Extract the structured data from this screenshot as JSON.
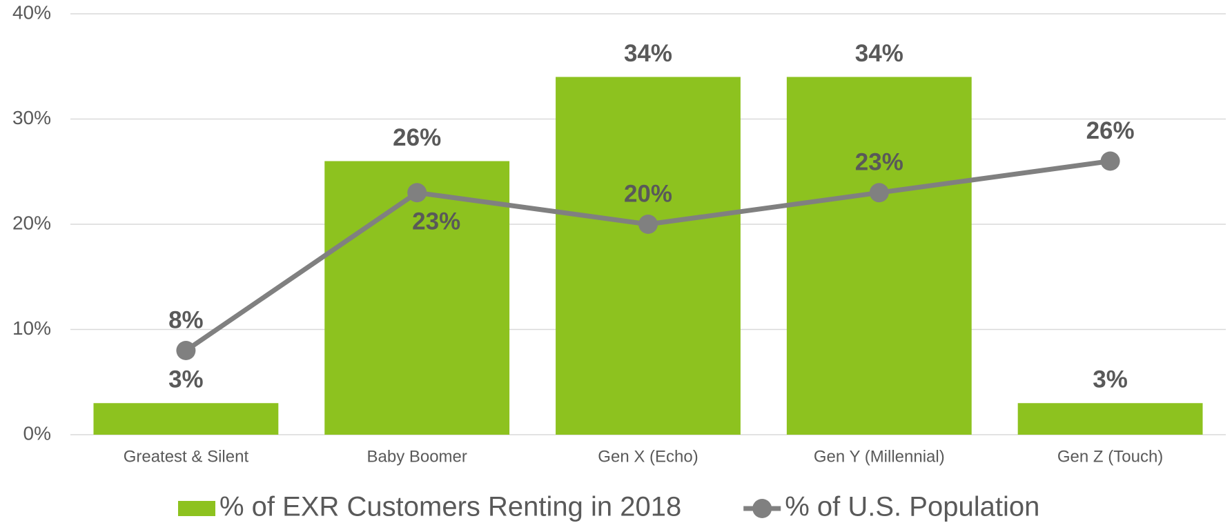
{
  "chart_data": {
    "type": "combo",
    "categories": [
      "Greatest & Silent",
      "Baby Boomer",
      "Gen X (Echo)",
      "Gen Y (Millennial)",
      "Gen Z (Touch)"
    ],
    "series": [
      {
        "name": "% of EXR Customers Renting in 2018",
        "type": "bar",
        "color": "#8dc21f",
        "values": [
          3,
          26,
          34,
          34,
          3
        ],
        "value_labels": [
          "3%",
          "26%",
          "34%",
          "34%",
          "3%"
        ]
      },
      {
        "name": "% of U.S. Population",
        "type": "line",
        "color": "#808080",
        "values": [
          8,
          23,
          20,
          23,
          26
        ],
        "value_labels": [
          "8%",
          "23%",
          "20%",
          "23%",
          "26%"
        ]
      }
    ],
    "ylim": [
      0,
      40
    ],
    "yticks": [
      {
        "value": 0,
        "label": "0%"
      },
      {
        "value": 10,
        "label": "10%"
      },
      {
        "value": 20,
        "label": "20%"
      },
      {
        "value": 30,
        "label": "30%"
      },
      {
        "value": 40,
        "label": "40%"
      }
    ],
    "grid": true,
    "legend": "bottom"
  }
}
